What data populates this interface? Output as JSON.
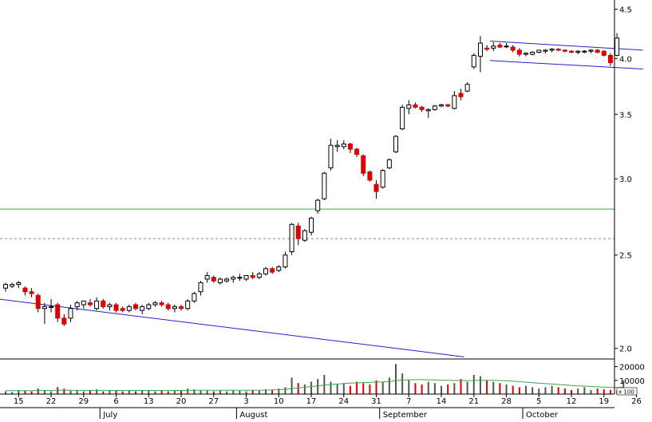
{
  "chart_data": {
    "type": "candlestick",
    "price_axis": {
      "scale": "log",
      "min": 1.95,
      "max": 4.6,
      "ticks": [
        "2.0",
        "2.5",
        "3.0",
        "3.5",
        "4.0",
        "4.5"
      ]
    },
    "volume_axis": {
      "max": 25000,
      "ticks": [
        "20000",
        "10000"
      ],
      "unit_label": "x 100"
    },
    "x_day_labels": [
      {
        "i": 2,
        "t": "15"
      },
      {
        "i": 7,
        "t": "22"
      },
      {
        "i": 12,
        "t": "29"
      },
      {
        "i": 17,
        "t": "6"
      },
      {
        "i": 22,
        "t": "13"
      },
      {
        "i": 27,
        "t": "20"
      },
      {
        "i": 32,
        "t": "27"
      },
      {
        "i": 37,
        "t": "3"
      },
      {
        "i": 42,
        "t": "10"
      },
      {
        "i": 47,
        "t": "17"
      },
      {
        "i": 52,
        "t": "24"
      },
      {
        "i": 57,
        "t": "31"
      },
      {
        "i": 62,
        "t": "7"
      },
      {
        "i": 67,
        "t": "14"
      },
      {
        "i": 72,
        "t": "21"
      },
      {
        "i": 77,
        "t": "28"
      },
      {
        "i": 82,
        "t": "5"
      },
      {
        "i": 87,
        "t": "12"
      },
      {
        "i": 92,
        "t": "19"
      },
      {
        "i": 97,
        "t": "26"
      }
    ],
    "x_month_labels": [
      {
        "i": 15,
        "t": "July"
      },
      {
        "i": 36,
        "t": "August"
      },
      {
        "i": 58,
        "t": "September"
      },
      {
        "i": 80,
        "t": "October"
      }
    ],
    "candles": [
      {
        "o": 2.31,
        "h": 2.34,
        "l": 2.29,
        "c": 2.33
      },
      {
        "o": 2.32,
        "h": 2.34,
        "l": 2.31,
        "c": 2.33
      },
      {
        "o": 2.33,
        "h": 2.35,
        "l": 2.31,
        "c": 2.34
      },
      {
        "o": 2.31,
        "h": 2.32,
        "l": 2.27,
        "c": 2.29
      },
      {
        "o": 2.29,
        "h": 2.31,
        "l": 2.26,
        "c": 2.28
      },
      {
        "o": 2.27,
        "h": 2.28,
        "l": 2.18,
        "c": 2.2
      },
      {
        "o": 2.2,
        "h": 2.23,
        "l": 2.12,
        "c": 2.21
      },
      {
        "o": 2.21,
        "h": 2.25,
        "l": 2.18,
        "c": 2.21
      },
      {
        "o": 2.22,
        "h": 2.23,
        "l": 2.13,
        "c": 2.15
      },
      {
        "o": 2.15,
        "h": 2.17,
        "l": 2.11,
        "c": 2.12
      },
      {
        "o": 2.15,
        "h": 2.22,
        "l": 2.13,
        "c": 2.2
      },
      {
        "o": 2.21,
        "h": 2.24,
        "l": 2.19,
        "c": 2.23
      },
      {
        "o": 2.22,
        "h": 2.24,
        "l": 2.2,
        "c": 2.24
      },
      {
        "o": 2.23,
        "h": 2.25,
        "l": 2.21,
        "c": 2.22
      },
      {
        "o": 2.2,
        "h": 2.26,
        "l": 2.19,
        "c": 2.24
      },
      {
        "o": 2.24,
        "h": 2.25,
        "l": 2.2,
        "c": 2.21
      },
      {
        "o": 2.21,
        "h": 2.23,
        "l": 2.19,
        "c": 2.22
      },
      {
        "o": 2.22,
        "h": 2.23,
        "l": 2.18,
        "c": 2.19
      },
      {
        "o": 2.2,
        "h": 2.21,
        "l": 2.18,
        "c": 2.19
      },
      {
        "o": 2.19,
        "h": 2.22,
        "l": 2.18,
        "c": 2.21
      },
      {
        "o": 2.22,
        "h": 2.23,
        "l": 2.19,
        "c": 2.2
      },
      {
        "o": 2.19,
        "h": 2.22,
        "l": 2.17,
        "c": 2.21
      },
      {
        "o": 2.2,
        "h": 2.23,
        "l": 2.19,
        "c": 2.22
      },
      {
        "o": 2.22,
        "h": 2.24,
        "l": 2.21,
        "c": 2.23
      },
      {
        "o": 2.23,
        "h": 2.24,
        "l": 2.21,
        "c": 2.22
      },
      {
        "o": 2.22,
        "h": 2.23,
        "l": 2.19,
        "c": 2.2
      },
      {
        "o": 2.2,
        "h": 2.22,
        "l": 2.18,
        "c": 2.21
      },
      {
        "o": 2.21,
        "h": 2.22,
        "l": 2.19,
        "c": 2.2
      },
      {
        "o": 2.2,
        "h": 2.25,
        "l": 2.19,
        "c": 2.24
      },
      {
        "o": 2.24,
        "h": 2.29,
        "l": 2.23,
        "c": 2.28
      },
      {
        "o": 2.29,
        "h": 2.35,
        "l": 2.27,
        "c": 2.34
      },
      {
        "o": 2.36,
        "h": 2.4,
        "l": 2.34,
        "c": 2.38
      },
      {
        "o": 2.37,
        "h": 2.38,
        "l": 2.34,
        "c": 2.35
      },
      {
        "o": 2.34,
        "h": 2.37,
        "l": 2.33,
        "c": 2.36
      },
      {
        "o": 2.35,
        "h": 2.37,
        "l": 2.34,
        "c": 2.36
      },
      {
        "o": 2.36,
        "h": 2.38,
        "l": 2.34,
        "c": 2.37
      },
      {
        "o": 2.37,
        "h": 2.39,
        "l": 2.35,
        "c": 2.37
      },
      {
        "o": 2.36,
        "h": 2.38,
        "l": 2.35,
        "c": 2.38
      },
      {
        "o": 2.38,
        "h": 2.4,
        "l": 2.36,
        "c": 2.37
      },
      {
        "o": 2.37,
        "h": 2.4,
        "l": 2.36,
        "c": 2.39
      },
      {
        "o": 2.39,
        "h": 2.43,
        "l": 2.38,
        "c": 2.42
      },
      {
        "o": 2.42,
        "h": 2.43,
        "l": 2.39,
        "c": 2.4
      },
      {
        "o": 2.41,
        "h": 2.44,
        "l": 2.4,
        "c": 2.43
      },
      {
        "o": 2.43,
        "h": 2.52,
        "l": 2.42,
        "c": 2.5
      },
      {
        "o": 2.52,
        "h": 2.7,
        "l": 2.5,
        "c": 2.69
      },
      {
        "o": 2.68,
        "h": 2.7,
        "l": 2.56,
        "c": 2.6
      },
      {
        "o": 2.59,
        "h": 2.66,
        "l": 2.58,
        "c": 2.65
      },
      {
        "o": 2.64,
        "h": 2.74,
        "l": 2.62,
        "c": 2.73
      },
      {
        "o": 2.78,
        "h": 2.86,
        "l": 2.76,
        "c": 2.85
      },
      {
        "o": 2.86,
        "h": 3.05,
        "l": 2.85,
        "c": 3.04
      },
      {
        "o": 3.08,
        "h": 3.3,
        "l": 3.06,
        "c": 3.25
      },
      {
        "o": 3.24,
        "h": 3.29,
        "l": 3.2,
        "c": 3.25
      },
      {
        "o": 3.24,
        "h": 3.29,
        "l": 3.22,
        "c": 3.26
      },
      {
        "o": 3.26,
        "h": 3.27,
        "l": 3.19,
        "c": 3.22
      },
      {
        "o": 3.22,
        "h": 3.23,
        "l": 3.16,
        "c": 3.18
      },
      {
        "o": 3.17,
        "h": 3.18,
        "l": 3.02,
        "c": 3.04
      },
      {
        "o": 3.05,
        "h": 3.06,
        "l": 2.98,
        "c": 2.99
      },
      {
        "o": 2.96,
        "h": 2.99,
        "l": 2.86,
        "c": 2.91
      },
      {
        "o": 2.94,
        "h": 3.07,
        "l": 2.93,
        "c": 3.06
      },
      {
        "o": 3.08,
        "h": 3.15,
        "l": 3.07,
        "c": 3.14
      },
      {
        "o": 3.2,
        "h": 3.33,
        "l": 3.19,
        "c": 3.32
      },
      {
        "o": 3.38,
        "h": 3.58,
        "l": 3.37,
        "c": 3.56
      },
      {
        "o": 3.55,
        "h": 3.62,
        "l": 3.5,
        "c": 3.58
      },
      {
        "o": 3.58,
        "h": 3.6,
        "l": 3.55,
        "c": 3.56
      },
      {
        "o": 3.56,
        "h": 3.57,
        "l": 3.52,
        "c": 3.54
      },
      {
        "o": 3.53,
        "h": 3.55,
        "l": 3.47,
        "c": 3.54
      },
      {
        "o": 3.54,
        "h": 3.58,
        "l": 3.53,
        "c": 3.57
      },
      {
        "o": 3.57,
        "h": 3.59,
        "l": 3.56,
        "c": 3.58
      },
      {
        "o": 3.58,
        "h": 3.59,
        "l": 3.56,
        "c": 3.57
      },
      {
        "o": 3.55,
        "h": 3.7,
        "l": 3.54,
        "c": 3.66
      },
      {
        "o": 3.68,
        "h": 3.72,
        "l": 3.62,
        "c": 3.65
      },
      {
        "o": 3.7,
        "h": 3.78,
        "l": 3.69,
        "c": 3.76
      },
      {
        "o": 3.92,
        "h": 4.05,
        "l": 3.9,
        "c": 4.03
      },
      {
        "o": 4.02,
        "h": 4.22,
        "l": 3.87,
        "c": 4.15
      },
      {
        "o": 4.1,
        "h": 4.13,
        "l": 4.07,
        "c": 4.09
      },
      {
        "o": 4.1,
        "h": 4.16,
        "l": 4.07,
        "c": 4.12
      },
      {
        "o": 4.13,
        "h": 4.15,
        "l": 4.1,
        "c": 4.11
      },
      {
        "o": 4.12,
        "h": 4.15,
        "l": 4.1,
        "c": 4.12
      },
      {
        "o": 4.11,
        "h": 4.13,
        "l": 4.06,
        "c": 4.08
      },
      {
        "o": 4.08,
        "h": 4.1,
        "l": 4.02,
        "c": 4.04
      },
      {
        "o": 4.04,
        "h": 4.06,
        "l": 4.02,
        "c": 4.05
      },
      {
        "o": 4.04,
        "h": 4.07,
        "l": 4.03,
        "c": 4.06
      },
      {
        "o": 4.06,
        "h": 4.08,
        "l": 4.05,
        "c": 4.08
      },
      {
        "o": 4.07,
        "h": 4.09,
        "l": 4.05,
        "c": 4.08
      },
      {
        "o": 4.08,
        "h": 4.1,
        "l": 4.06,
        "c": 4.09
      },
      {
        "o": 4.09,
        "h": 4.1,
        "l": 4.07,
        "c": 4.08
      },
      {
        "o": 4.08,
        "h": 4.09,
        "l": 4.06,
        "c": 4.07
      },
      {
        "o": 4.07,
        "h": 4.08,
        "l": 4.05,
        "c": 4.06
      },
      {
        "o": 4.06,
        "h": 4.08,
        "l": 4.04,
        "c": 4.07
      },
      {
        "o": 4.07,
        "h": 4.08,
        "l": 4.05,
        "c": 4.07
      },
      {
        "o": 4.07,
        "h": 4.09,
        "l": 4.05,
        "c": 4.08
      },
      {
        "o": 4.08,
        "h": 4.09,
        "l": 4.05,
        "c": 4.06
      },
      {
        "o": 4.07,
        "h": 4.08,
        "l": 4.02,
        "c": 4.03
      },
      {
        "o": 4.03,
        "h": 4.05,
        "l": 3.93,
        "c": 3.96
      },
      {
        "o": 4.03,
        "h": 4.25,
        "l": 4.02,
        "c": 4.2
      }
    ],
    "volume": [
      2000,
      1500,
      3000,
      2500,
      2000,
      4000,
      3000,
      2000,
      5000,
      4000,
      2500,
      3000,
      2000,
      2500,
      3500,
      2000,
      2500,
      3000,
      2000,
      2500,
      2000,
      2500,
      3000,
      2000,
      2500,
      2000,
      3000,
      2500,
      4000,
      3500,
      3000,
      2500,
      2000,
      2500,
      2000,
      3000,
      2500,
      2000,
      3000,
      2500,
      3500,
      3000,
      4000,
      5000,
      12000,
      8000,
      7000,
      9000,
      11000,
      14000,
      9000,
      7000,
      8000,
      6000,
      9000,
      8000,
      7000,
      10000,
      9000,
      12000,
      22000,
      15000,
      10000,
      8000,
      7000,
      9000,
      8000,
      6000,
      7000,
      8000,
      11000,
      9000,
      14000,
      13000,
      10000,
      9000,
      8000,
      7000,
      6000,
      5000,
      6000,
      5000,
      4000,
      5000,
      6000,
      5000,
      4000,
      3000,
      4000,
      5000,
      3000,
      4000,
      3500,
      3000,
      2500,
      10000
    ],
    "volume_ma": [
      2500,
      2500,
      2500,
      2500,
      2500,
      2600,
      2700,
      2700,
      2800,
      2800,
      2800,
      2700,
      2700,
      2700,
      2700,
      2700,
      2700,
      2600,
      2600,
      2600,
      2600,
      2600,
      2600,
      2600,
      2600,
      2600,
      2600,
      2600,
      2700,
      2800,
      2800,
      2800,
      2800,
      2800,
      2800,
      2800,
      2800,
      2800,
      2800,
      2800,
      2900,
      3000,
      3200,
      3500,
      4000,
      4500,
      5000,
      5500,
      6000,
      6600,
      7000,
      7300,
      7700,
      8000,
      8200,
      8400,
      8500,
      8700,
      8900,
      9200,
      9800,
      10200,
      10400,
      10500,
      10500,
      10400,
      10300,
      10100,
      10000,
      9900,
      9800,
      9800,
      9900,
      10000,
      10000,
      10000,
      9900,
      9700,
      9400,
      9000,
      8700,
      8300,
      7900,
      7600,
      7300,
      7000,
      6700,
      6300,
      6000,
      5800,
      5500,
      5300,
      5100,
      4900,
      4700,
      5000
    ],
    "horizontal_lines": [
      {
        "price": 2.79,
        "color": "#3aa655",
        "style": "solid"
      },
      {
        "price": 2.6,
        "color": "#888888",
        "style": "dashed"
      }
    ],
    "trend_lines": [
      {
        "i1": -1,
        "p1": 2.25,
        "i2": 70.5,
        "p2": 1.96,
        "color": "#2222cc"
      },
      {
        "i1": 74.5,
        "p1": 4.17,
        "i2": 98,
        "p2": 4.08,
        "color": "#2222cc"
      },
      {
        "i1": 74.5,
        "p1": 3.98,
        "i2": 98,
        "p2": 3.9,
        "color": "#2222cc"
      }
    ],
    "colors": {
      "up_fill": "#ffffff",
      "down_fill": "#dd0000",
      "outline": "#000000",
      "volume_up": "#555555",
      "volume_down": "#dd0000",
      "volume_ma": "#3aa655"
    }
  }
}
